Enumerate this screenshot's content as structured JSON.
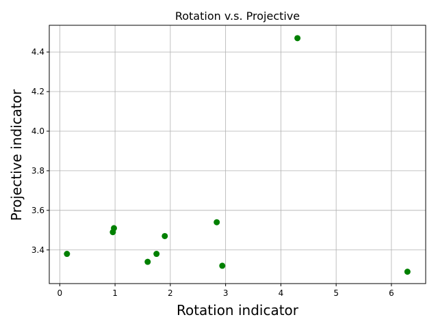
{
  "chart_data": {
    "type": "scatter",
    "title": "Rotation v.s. Projective",
    "xlabel": "Rotation indicator",
    "ylabel": "Projective indicator",
    "xlim": [
      -0.19,
      6.62
    ],
    "ylim": [
      3.23,
      4.535
    ],
    "xticks": [
      0,
      1,
      2,
      3,
      4,
      5,
      6
    ],
    "yticks": [
      3.4,
      3.6,
      3.8,
      4.0,
      4.2,
      4.4
    ],
    "ytick_labels": [
      "3.4",
      "3.6",
      "3.8",
      "4.0",
      "4.2",
      "4.4"
    ],
    "grid": true,
    "marker_color": "#008000",
    "points": [
      {
        "x": 0.13,
        "y": 3.38
      },
      {
        "x": 0.96,
        "y": 3.49
      },
      {
        "x": 0.98,
        "y": 3.51
      },
      {
        "x": 1.59,
        "y": 3.34
      },
      {
        "x": 1.75,
        "y": 3.38
      },
      {
        "x": 1.9,
        "y": 3.47
      },
      {
        "x": 2.84,
        "y": 3.54
      },
      {
        "x": 2.94,
        "y": 3.32
      },
      {
        "x": 4.3,
        "y": 4.47
      },
      {
        "x": 6.29,
        "y": 3.29
      }
    ]
  }
}
